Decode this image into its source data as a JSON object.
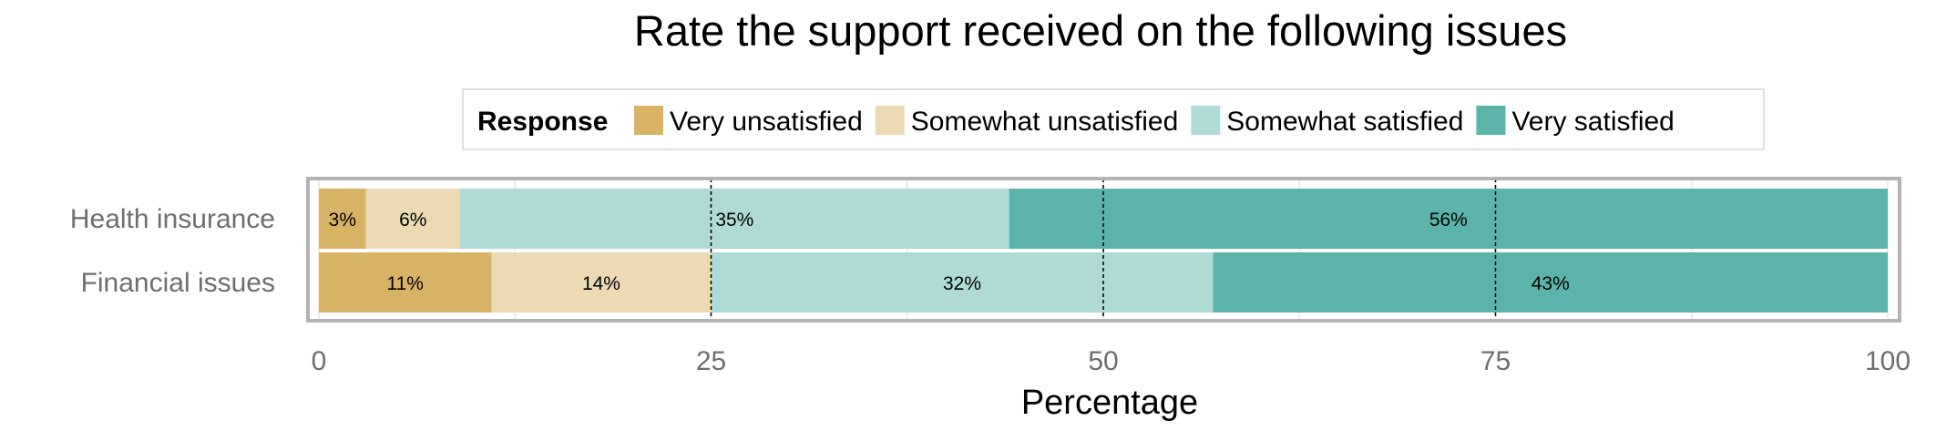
{
  "chart_data": {
    "type": "bar",
    "orientation": "horizontal",
    "stacked": true,
    "title": "Rate the support received on the following issues",
    "xlabel": "Percentage",
    "ylabel": "",
    "xlim": [
      0,
      100
    ],
    "xticks": [
      0,
      25,
      50,
      75,
      100
    ],
    "reference_lines": [
      25,
      50,
      75
    ],
    "grid": true,
    "legend": {
      "title": "Response",
      "position": "top"
    },
    "categories": [
      "Health insurance",
      "Financial issues"
    ],
    "series": [
      {
        "name": "Very unsatisfied",
        "color": "#d9b365",
        "values": [
          3,
          11
        ],
        "labels": [
          "3%",
          "11%"
        ]
      },
      {
        "name": "Somewhat unsatisfied",
        "color": "#ecdab4",
        "values": [
          6,
          14
        ],
        "labels": [
          "6%",
          "14%"
        ]
      },
      {
        "name": "Somewhat satisfied",
        "color": "#afdad6",
        "values": [
          35,
          32
        ],
        "labels": [
          "35%",
          "32%"
        ]
      },
      {
        "name": "Very satisfied",
        "color": "#5bb3aa",
        "values": [
          56,
          43
        ],
        "labels": [
          "56%",
          "43%"
        ]
      }
    ]
  }
}
